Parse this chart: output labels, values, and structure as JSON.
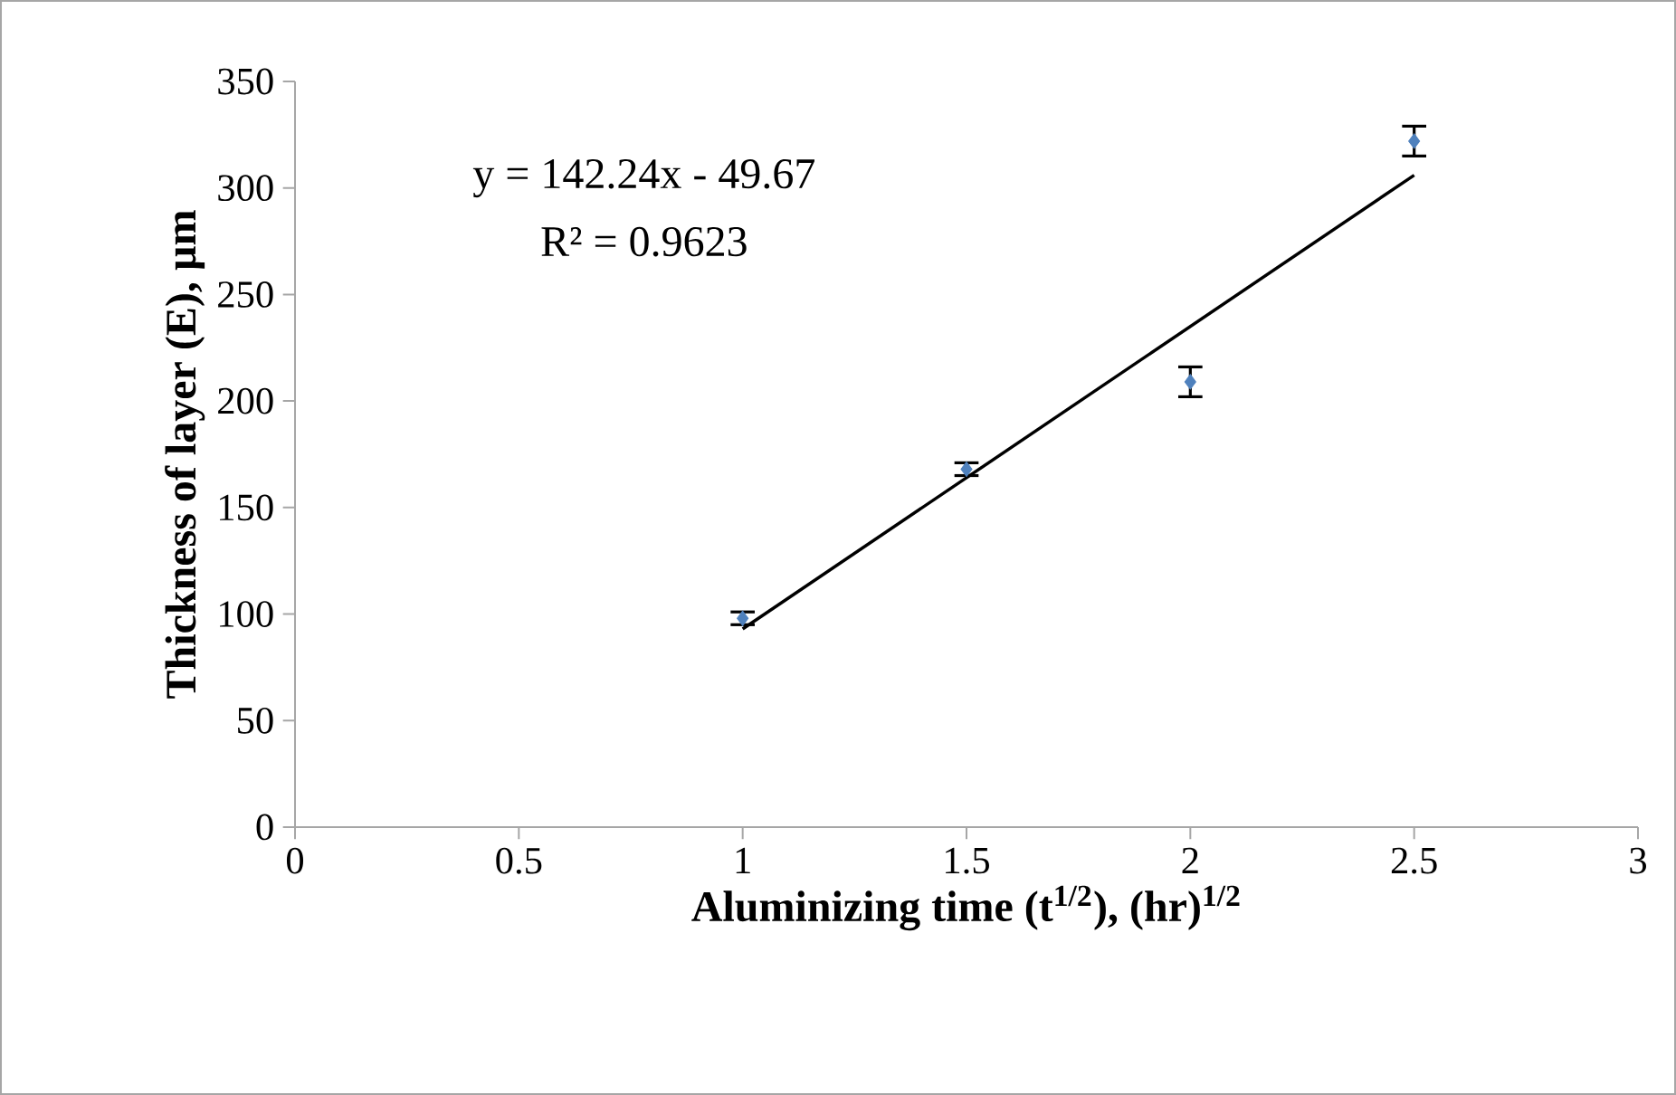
{
  "chart_data": {
    "type": "scatter",
    "xlabel": "Aluminizing time (t$^{1/2}$), (hr)$^{1/2}$",
    "ylabel": "Thickness of layer (E), µm",
    "xlim": [
      0,
      3
    ],
    "xticks": [
      0,
      0.5,
      1,
      1.5,
      2,
      2.5,
      3
    ],
    "ylim": [
      0,
      350
    ],
    "yticks": [
      0,
      50,
      100,
      150,
      200,
      250,
      300,
      350
    ],
    "marker": "diamond",
    "annotations": [
      "y = 142.24x - 49.67",
      "R² = 0.9623"
    ],
    "series": [
      {
        "type": "scatter",
        "color": "#4f81bd",
        "x": [
          1,
          1.5,
          2,
          2.5
        ],
        "values": [
          98,
          168,
          209,
          322
        ],
        "errors": [
          3,
          3,
          7,
          7
        ]
      },
      {
        "type": "line",
        "color": "#000000",
        "x": [
          1,
          2.5
        ],
        "values": [
          93,
          306
        ],
        "marker": "none",
        "line_style": "solid"
      }
    ]
  }
}
